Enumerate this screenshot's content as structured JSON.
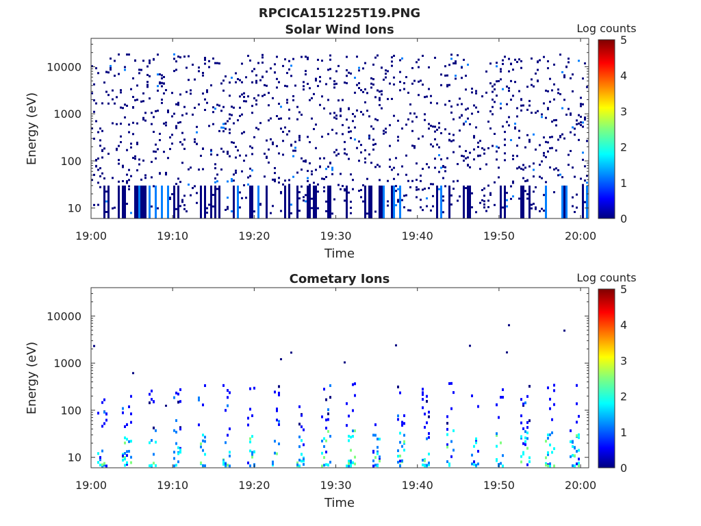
{
  "figure": {
    "filename": "RPCICA151225T19.PNG"
  },
  "colors": {
    "axis": "#333333",
    "background": "#ffffff",
    "colormap": [
      "#00007f",
      "#0000ff",
      "#007fff",
      "#00ffff",
      "#7fff7f",
      "#ffff00",
      "#ff7f00",
      "#ff0000",
      "#7f0000"
    ]
  },
  "chart_data": [
    {
      "type": "heatmap",
      "title": "Solar Wind Ions",
      "xlabel": "Time",
      "ylabel": "Energy (eV)",
      "y_scale": "log",
      "ylim": [
        6,
        40000
      ],
      "xlim": [
        "19:00",
        "20:01"
      ],
      "x_ticks": [
        "19:00",
        "19:10",
        "19:20",
        "19:30",
        "19:40",
        "19:50",
        "20:00"
      ],
      "y_ticks": [
        "10",
        "100",
        "1000",
        "10000"
      ],
      "colorbar": {
        "label": "Log counts",
        "range": [
          0,
          5
        ],
        "ticks": [
          "0",
          "1",
          "2",
          "3",
          "4",
          "5"
        ]
      },
      "description": "sparse scatter of low counts (0-1) between 10 eV and 20000 eV across the hour, with occasional 1-2 log-count streaks near 1000 eV and 10-30 eV"
    },
    {
      "type": "heatmap",
      "title": "Cometary Ions",
      "xlabel": "Time",
      "ylabel": "Energy (eV)",
      "y_scale": "log",
      "ylim": [
        6,
        40000
      ],
      "xlim": [
        "19:00",
        "20:01"
      ],
      "x_ticks": [
        "19:00",
        "19:10",
        "19:20",
        "19:30",
        "19:40",
        "19:50",
        "20:00"
      ],
      "y_ticks": [
        "10",
        "100",
        "1000",
        "10000"
      ],
      "colorbar": {
        "label": "Log counts",
        "range": [
          0,
          5
        ],
        "ticks": [
          "0",
          "1",
          "2",
          "3",
          "4",
          "5"
        ]
      },
      "description": "periodic bursts every ~3 min concentrated below 300 eV, peaking 1.5-2.5 log counts near 15-40 eV; few isolated points above 1000 eV"
    }
  ]
}
